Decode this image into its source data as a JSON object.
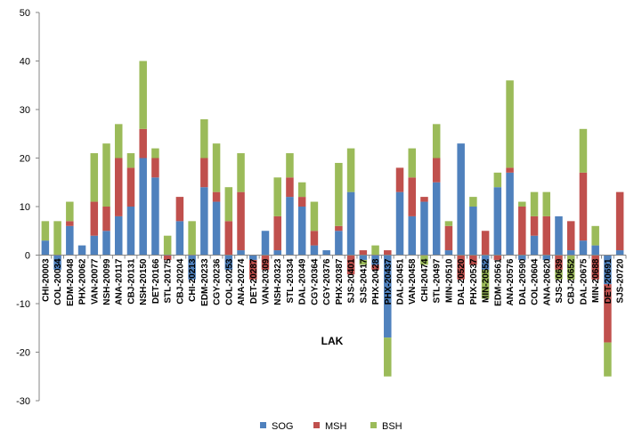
{
  "chart_data": {
    "type": "bar",
    "stacked": true,
    "title": "",
    "xlabel": "LAK",
    "ylabel": "",
    "ylim": [
      -30,
      50
    ],
    "yticks": [
      -30,
      -20,
      -10,
      0,
      10,
      20,
      30,
      40,
      50
    ],
    "grid": false,
    "legend_position": "bottom",
    "categories": [
      "CHI-20003",
      "COL-20034",
      "EDM-20048",
      "PHX-20062",
      "VAN-20077",
      "NSH-20099",
      "ANA-20117",
      "CBJ-20131",
      "NSH-20150",
      "DET-20166",
      "STL-20175",
      "CBJ-20204",
      "CHI-20213",
      "EDM-20233",
      "CGY-20236",
      "COL-20253",
      "ANA-20274",
      "DET-20287",
      "VAN-20309",
      "NSH-20323",
      "STL-20334",
      "DAL-20349",
      "CGY-20364",
      "CGY-20376",
      "PHX-20387",
      "SJS-20401",
      "SJS-20417",
      "PHX-20428",
      "PHX-20437",
      "DAL-20451",
      "VAN-20458",
      "CHI-20474",
      "STL-20497",
      "MIN-20510",
      "DAL-20520",
      "PHX-20537",
      "MIN-20552",
      "EDM-20561",
      "ANA-20576",
      "DAL-20590",
      "COL-20604",
      "ANA-20620",
      "SJS-20639",
      "CBJ-20652",
      "DAL-20675",
      "MIN-20688",
      "DET-20691",
      "SJS-20720"
    ],
    "series": [
      {
        "name": "SOG",
        "color": "#4F81BD",
        "values": [
          3,
          -3,
          6,
          2,
          4,
          5,
          8,
          10,
          20,
          16,
          0,
          7,
          -5,
          14,
          11,
          -3,
          1,
          -1,
          5,
          1,
          12,
          10,
          2,
          1,
          5,
          13,
          -1,
          -2,
          -17,
          13,
          8,
          11,
          15,
          1,
          23,
          10,
          -3,
          14,
          17,
          -1,
          4,
          -1,
          8,
          1,
          3,
          2,
          -6,
          1
        ]
      },
      {
        "name": "MSH",
        "color": "#C0504D",
        "values": [
          0,
          0,
          1,
          0,
          7,
          5,
          12,
          8,
          6,
          4,
          -1,
          5,
          0,
          6,
          2,
          7,
          12,
          -4,
          -3,
          7,
          4,
          2,
          3,
          0,
          1,
          -4,
          1,
          -1,
          1,
          5,
          8,
          1,
          5,
          5,
          -5,
          -2,
          5,
          -1,
          1,
          10,
          4,
          8,
          -3,
          6,
          14,
          -5,
          -12,
          12
        ]
      },
      {
        "name": "BSH",
        "color": "#9BBB59",
        "values": [
          4,
          7,
          4,
          0,
          10,
          13,
          7,
          3,
          14,
          2,
          4,
          0,
          7,
          8,
          10,
          7,
          8,
          0,
          0,
          8,
          5,
          3,
          6,
          0,
          13,
          9,
          -1,
          2,
          -8,
          0,
          6,
          -2,
          7,
          1,
          0,
          2,
          -6,
          3,
          18,
          1,
          5,
          5,
          -2,
          -5,
          9,
          4,
          -7,
          0
        ]
      }
    ]
  }
}
